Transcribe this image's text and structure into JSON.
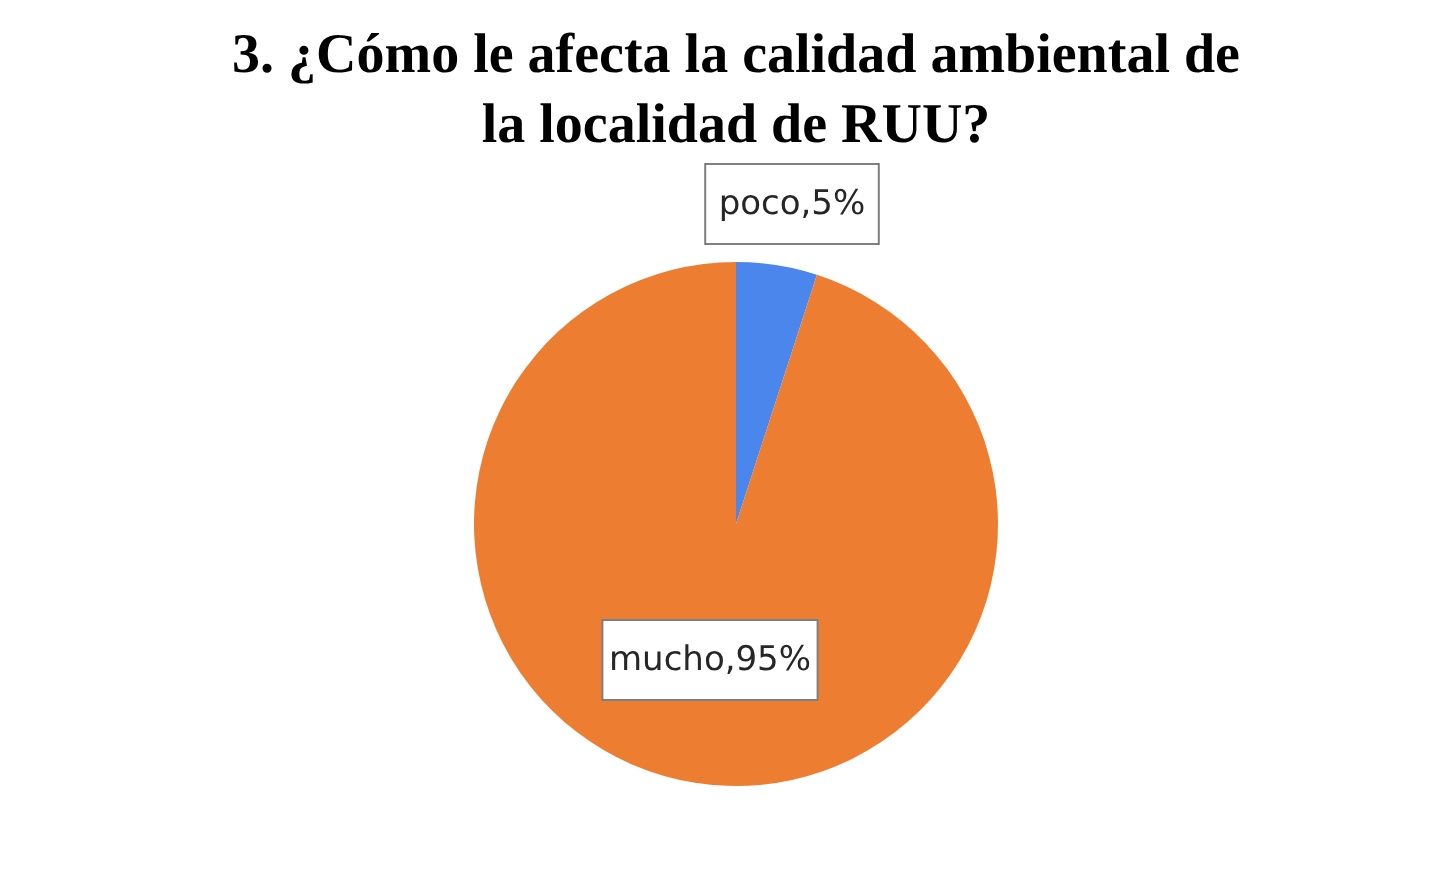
{
  "chart_data": {
    "type": "pie",
    "title": "3. ¿Cómo le afecta la calidad ambiental de la localidad de RUU?",
    "categories": [
      "poco",
      "mucho"
    ],
    "values": [
      5,
      95
    ],
    "colors": [
      "#4a86ec",
      "#ed7d31"
    ],
    "value_labels": [
      "5%",
      "95%"
    ]
  }
}
